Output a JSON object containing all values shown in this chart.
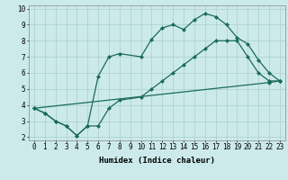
{
  "title": "",
  "xlabel": "Humidex (Indice chaleur)",
  "xlim": [
    -0.5,
    23.5
  ],
  "ylim": [
    1.8,
    10.2
  ],
  "bg_color": "#cceaea",
  "grid_color": "#aacece",
  "line_color": "#1a6b5a",
  "line1_x": [
    0,
    1,
    2,
    3,
    4,
    5,
    6,
    7,
    8,
    10,
    11,
    12,
    13,
    14,
    15,
    16,
    17,
    18,
    19,
    20,
    21,
    22,
    23
  ],
  "line1_y": [
    3.8,
    3.5,
    3.0,
    2.7,
    2.1,
    2.7,
    5.8,
    7.0,
    7.2,
    7.0,
    8.1,
    8.8,
    9.0,
    8.7,
    9.3,
    9.7,
    9.5,
    9.0,
    8.2,
    7.8,
    6.8,
    6.0,
    5.5
  ],
  "line2_x": [
    0,
    1,
    2,
    3,
    4,
    5,
    6,
    7,
    8,
    10,
    11,
    12,
    13,
    14,
    15,
    16,
    17,
    18,
    19,
    20,
    21,
    22,
    23
  ],
  "line2_y": [
    3.8,
    3.5,
    3.0,
    2.7,
    2.1,
    2.7,
    2.7,
    3.8,
    4.3,
    4.5,
    5.0,
    5.5,
    6.0,
    6.5,
    7.0,
    7.5,
    8.0,
    8.0,
    8.0,
    7.0,
    6.0,
    5.5,
    5.5
  ],
  "line3_x": [
    0,
    22,
    23
  ],
  "line3_y": [
    3.8,
    5.4,
    5.5
  ],
  "xticks": [
    0,
    1,
    2,
    3,
    4,
    5,
    6,
    7,
    8,
    9,
    10,
    11,
    12,
    13,
    14,
    15,
    16,
    17,
    18,
    19,
    20,
    21,
    22,
    23
  ],
  "yticks": [
    2,
    3,
    4,
    5,
    6,
    7,
    8,
    9,
    10
  ],
  "tick_fontsize": 5.5,
  "xlabel_fontsize": 6.5,
  "marker_size": 2.5,
  "line_width": 0.9
}
